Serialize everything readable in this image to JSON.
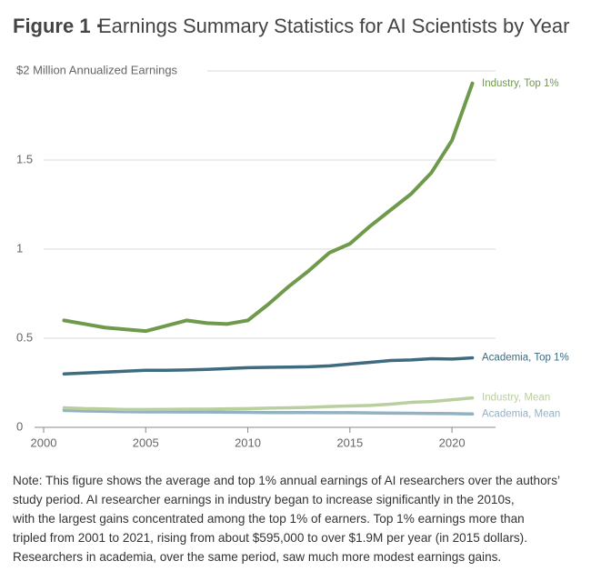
{
  "chart_data": {
    "type": "line",
    "title_label": "Figure 1 ·",
    "title": "Earnings Summary Statistics for AI Scientists by Year",
    "x": [
      2001,
      2002,
      2003,
      2004,
      2005,
      2006,
      2007,
      2008,
      2009,
      2010,
      2011,
      2012,
      2013,
      2014,
      2015,
      2016,
      2017,
      2018,
      2019,
      2020,
      2021
    ],
    "series": [
      {
        "name": "Industry, Top 1%",
        "color": "#6f9a4c",
        "values": [
          0.6,
          0.58,
          0.56,
          0.55,
          0.54,
          0.57,
          0.6,
          0.585,
          0.58,
          0.6,
          0.69,
          0.79,
          0.88,
          0.98,
          1.03,
          1.13,
          1.22,
          1.31,
          1.43,
          1.61,
          1.93
        ]
      },
      {
        "name": "Academia, Top 1%",
        "color": "#3e6b80",
        "values": [
          0.3,
          0.305,
          0.31,
          0.315,
          0.32,
          0.32,
          0.322,
          0.325,
          0.33,
          0.335,
          0.337,
          0.338,
          0.34,
          0.345,
          0.355,
          0.365,
          0.375,
          0.378,
          0.385,
          0.383,
          0.39
        ]
      },
      {
        "name": "Industry, Mean",
        "color": "#b9cf9e",
        "values": [
          0.11,
          0.105,
          0.103,
          0.1,
          0.1,
          0.101,
          0.102,
          0.102,
          0.104,
          0.105,
          0.108,
          0.11,
          0.112,
          0.117,
          0.12,
          0.123,
          0.13,
          0.14,
          0.145,
          0.155,
          0.165
        ]
      },
      {
        "name": "Academia, Mean",
        "color": "#92b2c4",
        "values": [
          0.095,
          0.092,
          0.09,
          0.088,
          0.087,
          0.087,
          0.086,
          0.086,
          0.085,
          0.084,
          0.083,
          0.083,
          0.083,
          0.082,
          0.082,
          0.081,
          0.08,
          0.079,
          0.078,
          0.077,
          0.075
        ]
      }
    ],
    "xlim": [
      2000,
      2022
    ],
    "xticks": [
      2000,
      2005,
      2010,
      2015,
      2020
    ],
    "ylim": [
      0,
      2
    ],
    "yticks": [
      0,
      0.5,
      1,
      1.5,
      {
        "value": 2,
        "label": "$2 Million Annualized Earnings"
      }
    ],
    "grid": true,
    "note_lines": [
      "Note: This figure shows the average and top 1% annual earnings of AI researchers over the authors’",
      "study period. AI researcher earnings in industry began to increase significantly in the 2010s,",
      "with the largest gains concentrated among the top 1% of earners. Top 1% earnings more than",
      "tripled from 2001 to 2021, rising from about $595,000 to over $1.9M per year (in 2015 dollars).",
      "Researchers in academia, over the same period, saw much more modest earnings gains."
    ]
  }
}
